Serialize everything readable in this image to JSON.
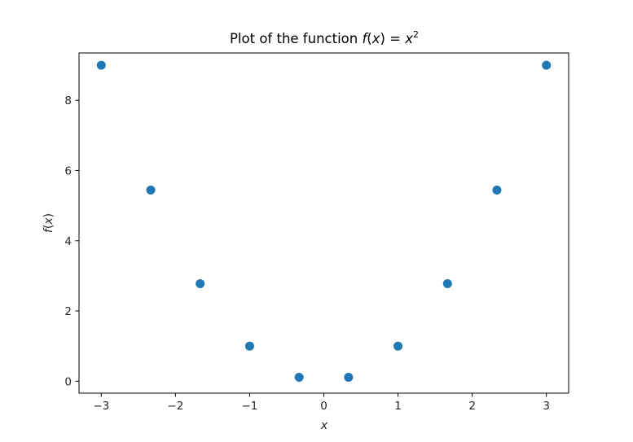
{
  "chart_data": {
    "type": "scatter",
    "title_plain": "Plot of the function ",
    "title_math_func": "f",
    "title_math_open": "(",
    "title_math_var": "x",
    "title_math_close": ") = ",
    "title_math_base": "x",
    "title_math_exp": "2",
    "xlabel": "x",
    "ylabel_func": "f",
    "ylabel_open": "(",
    "ylabel_var": "x",
    "ylabel_close": ")",
    "xlim": [
      -3.3,
      3.3
    ],
    "ylim": [
      -0.34,
      9.35
    ],
    "xticks": [
      -3,
      -2,
      -1,
      0,
      1,
      2,
      3
    ],
    "xtick_labels": [
      "−3",
      "−2",
      "−1",
      "0",
      "1",
      "2",
      "3"
    ],
    "yticks": [
      0,
      2,
      4,
      6,
      8
    ],
    "ytick_labels": [
      "0",
      "2",
      "4",
      "6",
      "8"
    ],
    "grid": false,
    "legend": "none",
    "marker_color": "#1f77b4",
    "x": [
      -3.0,
      -2.333,
      -1.667,
      -1.0,
      -0.333,
      0.333,
      1.0,
      1.667,
      2.333,
      3.0
    ],
    "y": [
      9.0,
      5.444,
      2.778,
      1.0,
      0.111,
      0.111,
      1.0,
      2.778,
      5.444,
      9.0
    ]
  }
}
